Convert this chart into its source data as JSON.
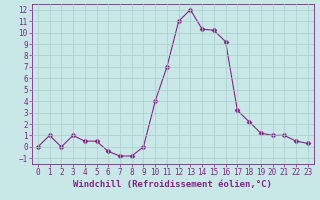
{
  "x": [
    0,
    1,
    2,
    3,
    4,
    5,
    6,
    7,
    8,
    9,
    10,
    11,
    12,
    13,
    14,
    15,
    16,
    17,
    18,
    19,
    20,
    21,
    22,
    23
  ],
  "y": [
    0.0,
    1.0,
    0.0,
    1.0,
    0.5,
    0.5,
    -0.4,
    -0.8,
    -0.8,
    0.0,
    4.0,
    7.0,
    11.0,
    12.0,
    10.3,
    10.2,
    9.2,
    3.2,
    2.2,
    1.2,
    1.0,
    1.0,
    0.5,
    0.3
  ],
  "line_color": "#882288",
  "marker": "D",
  "marker_size": 2.5,
  "bg_color": "#c8e8e8",
  "grid_color": "#aacccc",
  "xlabel": "Windchill (Refroidissement éolien,°C)",
  "xlim": [
    -0.5,
    23.5
  ],
  "ylim": [
    -1.5,
    12.5
  ],
  "yticks": [
    -1,
    0,
    1,
    2,
    3,
    4,
    5,
    6,
    7,
    8,
    9,
    10,
    11,
    12
  ],
  "xticks": [
    0,
    1,
    2,
    3,
    4,
    5,
    6,
    7,
    8,
    9,
    10,
    11,
    12,
    13,
    14,
    15,
    16,
    17,
    18,
    19,
    20,
    21,
    22,
    23
  ],
  "tick_color": "#882288",
  "label_color": "#882288",
  "tick_fontsize": 5.5,
  "xlabel_fontsize": 6.5
}
